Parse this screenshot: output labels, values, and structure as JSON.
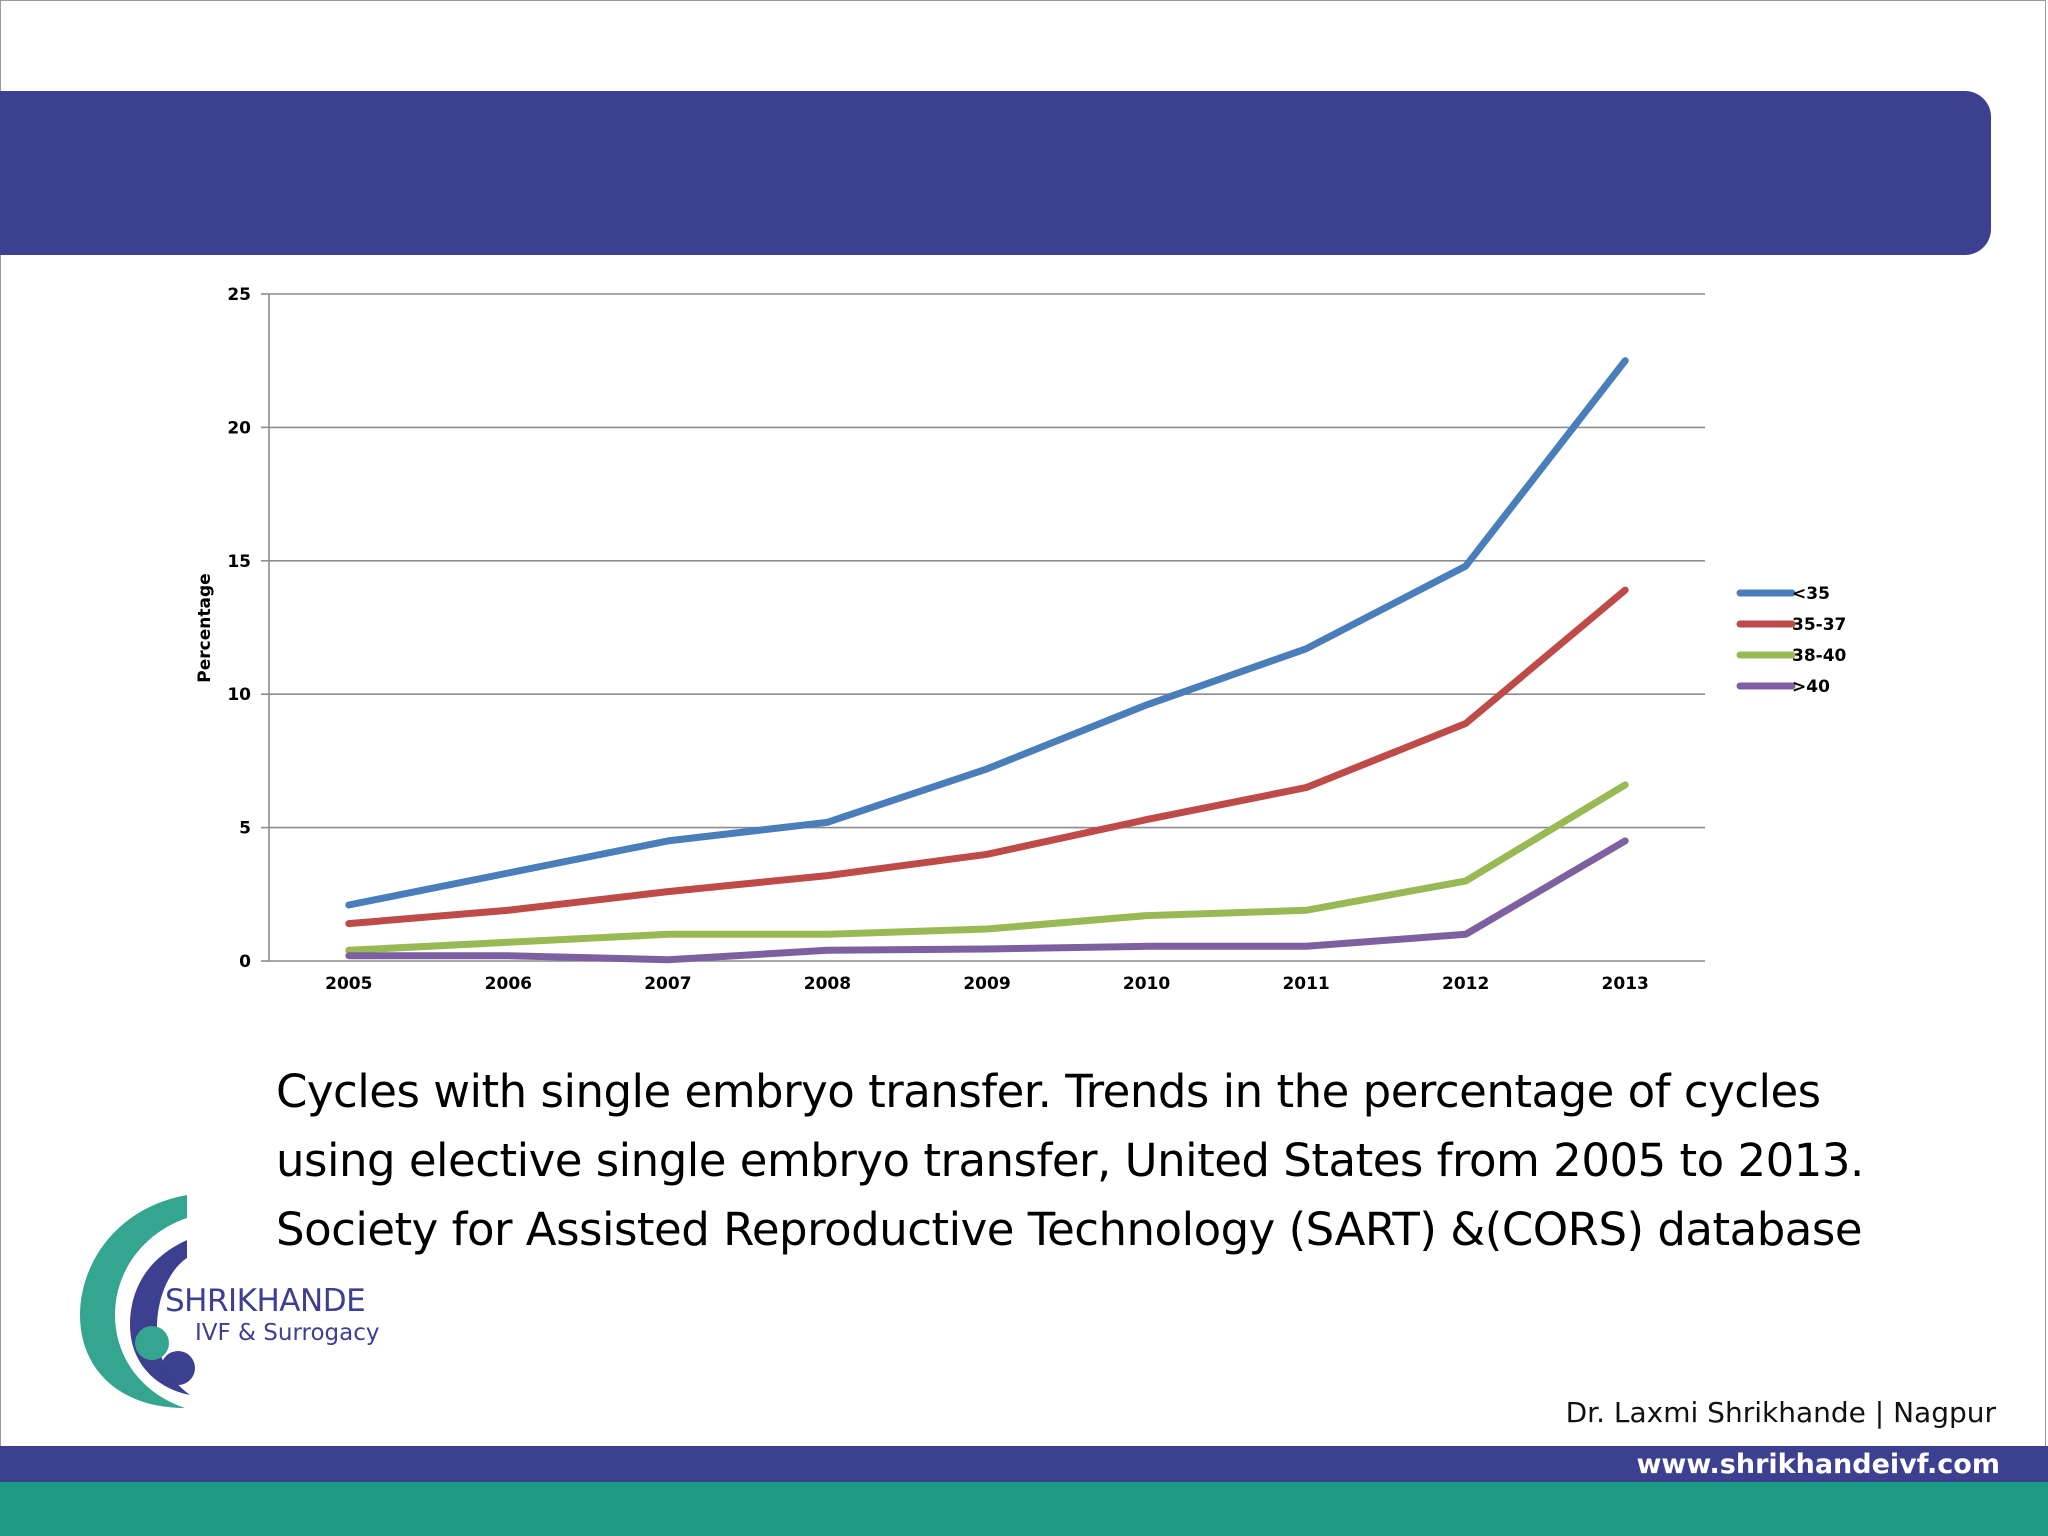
{
  "colors": {
    "header": "#3d3f91",
    "footer_blue": "#3d3f91",
    "footer_teal": "#1c9c83",
    "logo_teal": "#34a58f",
    "logo_purple": "#3d3f91"
  },
  "chart_data": {
    "type": "line",
    "title": "",
    "xlabel": "",
    "ylabel": "Percentage",
    "x": [
      "2005",
      "2006",
      "2007",
      "2008",
      "2009",
      "2010",
      "2011",
      "2012",
      "2013"
    ],
    "ylim": [
      0,
      25
    ],
    "yticks": [
      0,
      5,
      10,
      15,
      20,
      25
    ],
    "grid": true,
    "legend_position": "right",
    "series": [
      {
        "name": "<35",
        "color": "#4a7ebb",
        "values": [
          2.1,
          3.3,
          4.5,
          5.2,
          7.2,
          9.6,
          11.7,
          14.8,
          22.5
        ]
      },
      {
        "name": "35-37",
        "color": "#be4b48",
        "values": [
          1.4,
          1.9,
          2.6,
          3.2,
          4.0,
          5.3,
          6.5,
          8.9,
          13.9
        ]
      },
      {
        "name": "38-40",
        "color": "#98b954",
        "values": [
          0.4,
          0.7,
          1.0,
          1.0,
          1.2,
          1.7,
          1.9,
          3.0,
          6.6
        ]
      },
      {
        "name": ">40",
        "color": "#7d60a0",
        "values": [
          0.2,
          0.2,
          0.05,
          0.4,
          0.45,
          0.55,
          0.55,
          1.0,
          4.5
        ]
      }
    ]
  },
  "caption": {
    "line1": "Cycles with single embryo transfer. Trends in the percentage of cycles",
    "line2": "using elective single embryo transfer, United States from 2005 to 2013.",
    "line3": "Society for Assisted Reproductive Technology (SART)  &(CORS) database"
  },
  "logo": {
    "name": "SHRIKHANDE",
    "subtitle": "IVF & Surrogacy"
  },
  "footer": {
    "author": "Dr. Laxmi Shrikhande | Nagpur",
    "website": "www.shrikhandeivf.com"
  }
}
